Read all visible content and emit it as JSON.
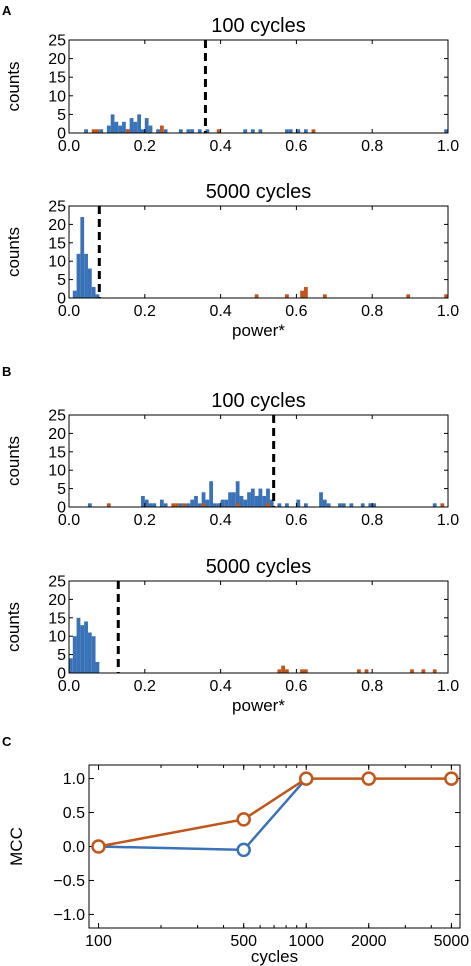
{
  "colors": {
    "blue": "#3a72b8",
    "orange": "#c0561b",
    "threshold": "#000000"
  },
  "panel_labels": [
    "A",
    "B",
    "C"
  ],
  "chart_data": [
    {
      "type": "bar",
      "panel": "A",
      "title": "100 cycles",
      "xlabel": "",
      "ylabel": "counts",
      "xlim": [
        0,
        1
      ],
      "ylim": [
        0,
        25
      ],
      "xticks": [
        "0.0",
        "0.2",
        "0.4",
        "0.6",
        "0.8",
        "1.0"
      ],
      "yticks": [
        "0",
        "5",
        "10",
        "15",
        "20",
        "25"
      ],
      "threshold": 0.36,
      "bin_width": 0.01,
      "series": [
        {
          "color": "blue",
          "bins": [
            [
              0.04,
              1
            ],
            [
              0.08,
              1
            ],
            [
              0.1,
              2
            ],
            [
              0.11,
              5
            ],
            [
              0.12,
              3
            ],
            [
              0.13,
              2
            ],
            [
              0.14,
              3
            ],
            [
              0.15,
              1
            ],
            [
              0.16,
              4
            ],
            [
              0.17,
              3
            ],
            [
              0.18,
              5
            ],
            [
              0.19,
              1
            ],
            [
              0.2,
              4
            ],
            [
              0.21,
              2
            ],
            [
              0.23,
              1
            ],
            [
              0.25,
              1
            ],
            [
              0.29,
              1
            ],
            [
              0.31,
              1
            ],
            [
              0.32,
              1
            ],
            [
              0.34,
              1
            ],
            [
              0.36,
              1
            ],
            [
              0.46,
              1
            ],
            [
              0.48,
              1
            ],
            [
              0.5,
              1
            ],
            [
              0.57,
              1
            ],
            [
              0.58,
              1
            ],
            [
              0.6,
              1
            ],
            [
              0.62,
              1
            ],
            [
              0.99,
              1
            ]
          ]
        },
        {
          "color": "orange",
          "bins": [
            [
              0.06,
              1
            ],
            [
              0.07,
              1
            ],
            [
              0.15,
              1
            ],
            [
              0.24,
              2
            ],
            [
              0.39,
              1
            ],
            [
              0.64,
              1
            ]
          ]
        }
      ]
    },
    {
      "type": "bar",
      "panel": "A",
      "title": "5000 cycles",
      "xlabel": "power*",
      "ylabel": "counts",
      "xlim": [
        0,
        1
      ],
      "ylim": [
        0,
        25
      ],
      "xticks": [
        "0.0",
        "0.2",
        "0.4",
        "0.6",
        "0.8",
        "1.0"
      ],
      "yticks": [
        "0",
        "5",
        "10",
        "15",
        "20",
        "25"
      ],
      "threshold": 0.08,
      "bin_width": 0.01,
      "series": [
        {
          "color": "blue",
          "bins": [
            [
              0.01,
              2
            ],
            [
              0.02,
              12
            ],
            [
              0.03,
              22
            ],
            [
              0.04,
              12
            ],
            [
              0.05,
              8
            ],
            [
              0.06,
              3
            ],
            [
              0.07,
              1
            ]
          ]
        },
        {
          "color": "orange",
          "bins": [
            [
              0.49,
              1
            ],
            [
              0.57,
              1
            ],
            [
              0.61,
              2
            ],
            [
              0.62,
              3
            ],
            [
              0.67,
              1
            ],
            [
              0.89,
              1
            ],
            [
              0.99,
              1
            ]
          ]
        }
      ]
    },
    {
      "type": "bar",
      "panel": "B",
      "title": "100 cycles",
      "xlabel": "",
      "ylabel": "counts",
      "xlim": [
        0,
        1
      ],
      "ylim": [
        0,
        25
      ],
      "xticks": [
        "0.0",
        "0.2",
        "0.4",
        "0.6",
        "0.8",
        "1.0"
      ],
      "yticks": [
        "0",
        "5",
        "10",
        "15",
        "20",
        "25"
      ],
      "threshold": 0.54,
      "bin_width": 0.01,
      "series": [
        {
          "color": "blue",
          "bins": [
            [
              0.05,
              1
            ],
            [
              0.19,
              3
            ],
            [
              0.2,
              2
            ],
            [
              0.21,
              1
            ],
            [
              0.22,
              1
            ],
            [
              0.24,
              2
            ],
            [
              0.25,
              1
            ],
            [
              0.29,
              1
            ],
            [
              0.31,
              1
            ],
            [
              0.32,
              2
            ],
            [
              0.33,
              3
            ],
            [
              0.34,
              1
            ],
            [
              0.35,
              4
            ],
            [
              0.36,
              2
            ],
            [
              0.37,
              7
            ],
            [
              0.38,
              1
            ],
            [
              0.39,
              1
            ],
            [
              0.4,
              2
            ],
            [
              0.41,
              2
            ],
            [
              0.42,
              4
            ],
            [
              0.43,
              4
            ],
            [
              0.44,
              7
            ],
            [
              0.45,
              3
            ],
            [
              0.46,
              2
            ],
            [
              0.47,
              4
            ],
            [
              0.48,
              5
            ],
            [
              0.49,
              3
            ],
            [
              0.5,
              5
            ],
            [
              0.51,
              3
            ],
            [
              0.52,
              5
            ],
            [
              0.53,
              2
            ],
            [
              0.55,
              1
            ],
            [
              0.57,
              1
            ],
            [
              0.6,
              2
            ],
            [
              0.62,
              1
            ],
            [
              0.66,
              4
            ],
            [
              0.67,
              2
            ],
            [
              0.68,
              1
            ],
            [
              0.71,
              1
            ],
            [
              0.72,
              1
            ],
            [
              0.74,
              1
            ],
            [
              0.77,
              1
            ],
            [
              0.79,
              1
            ],
            [
              0.8,
              1
            ],
            [
              0.96,
              1
            ]
          ]
        },
        {
          "color": "orange",
          "bins": [
            [
              0.1,
              1
            ],
            [
              0.27,
              1
            ],
            [
              0.28,
              1
            ],
            [
              0.3,
              1
            ],
            [
              0.35,
              1
            ],
            [
              0.44,
              1
            ],
            [
              0.52,
              1
            ],
            [
              0.98,
              1
            ]
          ]
        }
      ]
    },
    {
      "type": "bar",
      "panel": "B",
      "title": "5000 cycles",
      "xlabel": "power*",
      "ylabel": "counts",
      "xlim": [
        0,
        1
      ],
      "ylim": [
        0,
        25
      ],
      "xticks": [
        "0.0",
        "0.2",
        "0.4",
        "0.6",
        "0.8",
        "1.0"
      ],
      "yticks": [
        "0",
        "5",
        "10",
        "15",
        "20",
        "25"
      ],
      "threshold": 0.13,
      "bin_width": 0.01,
      "series": [
        {
          "color": "blue",
          "bins": [
            [
              0.0,
              4
            ],
            [
              0.01,
              10
            ],
            [
              0.02,
              15
            ],
            [
              0.03,
              13
            ],
            [
              0.04,
              14
            ],
            [
              0.05,
              11
            ],
            [
              0.06,
              10
            ],
            [
              0.07,
              3
            ]
          ]
        },
        {
          "color": "orange",
          "bins": [
            [
              0.55,
              1
            ],
            [
              0.56,
              2
            ],
            [
              0.57,
              1
            ],
            [
              0.61,
              1
            ],
            [
              0.62,
              1
            ],
            [
              0.76,
              1
            ],
            [
              0.78,
              1
            ],
            [
              0.9,
              1
            ],
            [
              0.93,
              1
            ],
            [
              0.96,
              1
            ]
          ]
        }
      ]
    },
    {
      "type": "line",
      "panel": "C",
      "xlabel": "cycles",
      "ylabel": "MCC",
      "xscale": "log",
      "xlim": [
        90,
        5500
      ],
      "ylim": [
        -1.2,
        1.2
      ],
      "xticks": [
        100,
        500,
        1000,
        2000,
        5000
      ],
      "xtick_labels": [
        "100",
        "500",
        "1000",
        "2000",
        "5000"
      ],
      "yticks": [
        -1.0,
        -0.5,
        0.0,
        0.5,
        1.0
      ],
      "ytick_labels": [
        "−1.0",
        "−0.5",
        "0.0",
        "0.5",
        "1.0"
      ],
      "series": [
        {
          "color": "blue",
          "x": [
            100,
            500,
            1000
          ],
          "y": [
            0.0,
            -0.05,
            1.0
          ],
          "open_markers_at": [
            500
          ]
        },
        {
          "color": "orange",
          "x": [
            100,
            500,
            1000,
            2000,
            5000
          ],
          "y": [
            0.0,
            0.4,
            1.0,
            1.0,
            1.0
          ],
          "open_markers_at": [
            100,
            500,
            1000,
            2000,
            5000
          ]
        }
      ]
    }
  ]
}
